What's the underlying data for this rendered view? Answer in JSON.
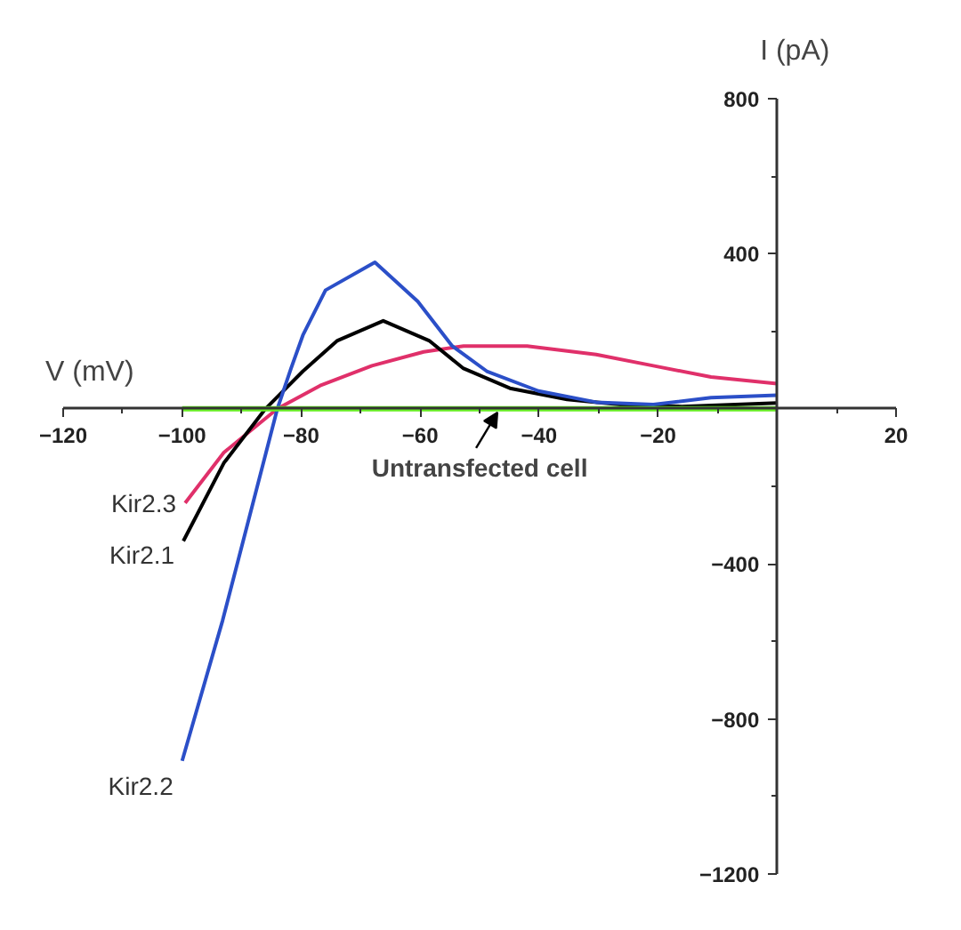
{
  "chart_data": {
    "type": "line",
    "xlabel": "V (mV)",
    "ylabel": "I (pA)",
    "xlim": [
      -120,
      20
    ],
    "ylim": [
      -1200,
      800
    ],
    "xticks": [
      -120,
      {
        "value": -110,
        "label": null
      },
      -100,
      {
        "value": -90,
        "label": null
      },
      -80,
      {
        "value": -70,
        "label": null
      },
      -60,
      {
        "value": -50,
        "label": null
      },
      -40,
      {
        "value": -30,
        "label": null
      },
      -20,
      {
        "value": -10,
        "label": null
      },
      {
        "value": 10,
        "label": null
      },
      20
    ],
    "yticks": [
      -1200,
      {
        "value": -1000,
        "label": null
      },
      -800,
      {
        "value": -600,
        "label": null
      },
      -400,
      {
        "value": -200,
        "label": null
      },
      {
        "value": 200,
        "label": null
      },
      400,
      {
        "value": 600,
        "label": null
      },
      800
    ],
    "grid": false,
    "legend": false,
    "marker": "none",
    "line_style": "solid",
    "series": [
      {
        "name": "Kir2.3",
        "color": "#e0306a",
        "x": [
          -99.5,
          -93,
          -84,
          -76.8,
          -68.1,
          -59.4,
          -52.7,
          -42,
          -30.4,
          -20.8,
          -11.1,
          0
        ],
        "values": [
          -243,
          -113,
          0,
          60,
          111,
          147,
          162,
          162,
          140,
          111,
          82,
          65
        ]
      },
      {
        "name": "Kir2.1",
        "color": "#000000",
        "x": [
          -99.8,
          -93,
          -86,
          -79.7,
          -73.9,
          -66.2,
          -58.5,
          -52.7,
          -44.9,
          -35.3,
          -25.6,
          -16,
          0
        ],
        "values": [
          -341,
          -140,
          0,
          97,
          176,
          227,
          176,
          104,
          53,
          24,
          10,
          6,
          15
        ]
      },
      {
        "name": "Kir2.2",
        "color": "#2b4fc8",
        "x": [
          -100,
          -93.2,
          -84,
          -81.7,
          -79.7,
          -75.9,
          -67.6,
          -60.4,
          -54.6,
          -48.8,
          -40.1,
          -30.4,
          -20.8,
          -11.1,
          0
        ],
        "values": [
          -908,
          -546,
          0,
          104,
          190,
          306,
          378,
          277,
          162,
          97,
          46,
          17,
          11,
          29,
          35
        ]
      },
      {
        "color": "#66ee22",
        "x": [
          -100,
          0
        ],
        "values": [
          0,
          0
        ]
      }
    ],
    "annotations": [
      {
        "text": "Untransfected cell",
        "x": -47,
        "y": 0
      }
    ]
  }
}
